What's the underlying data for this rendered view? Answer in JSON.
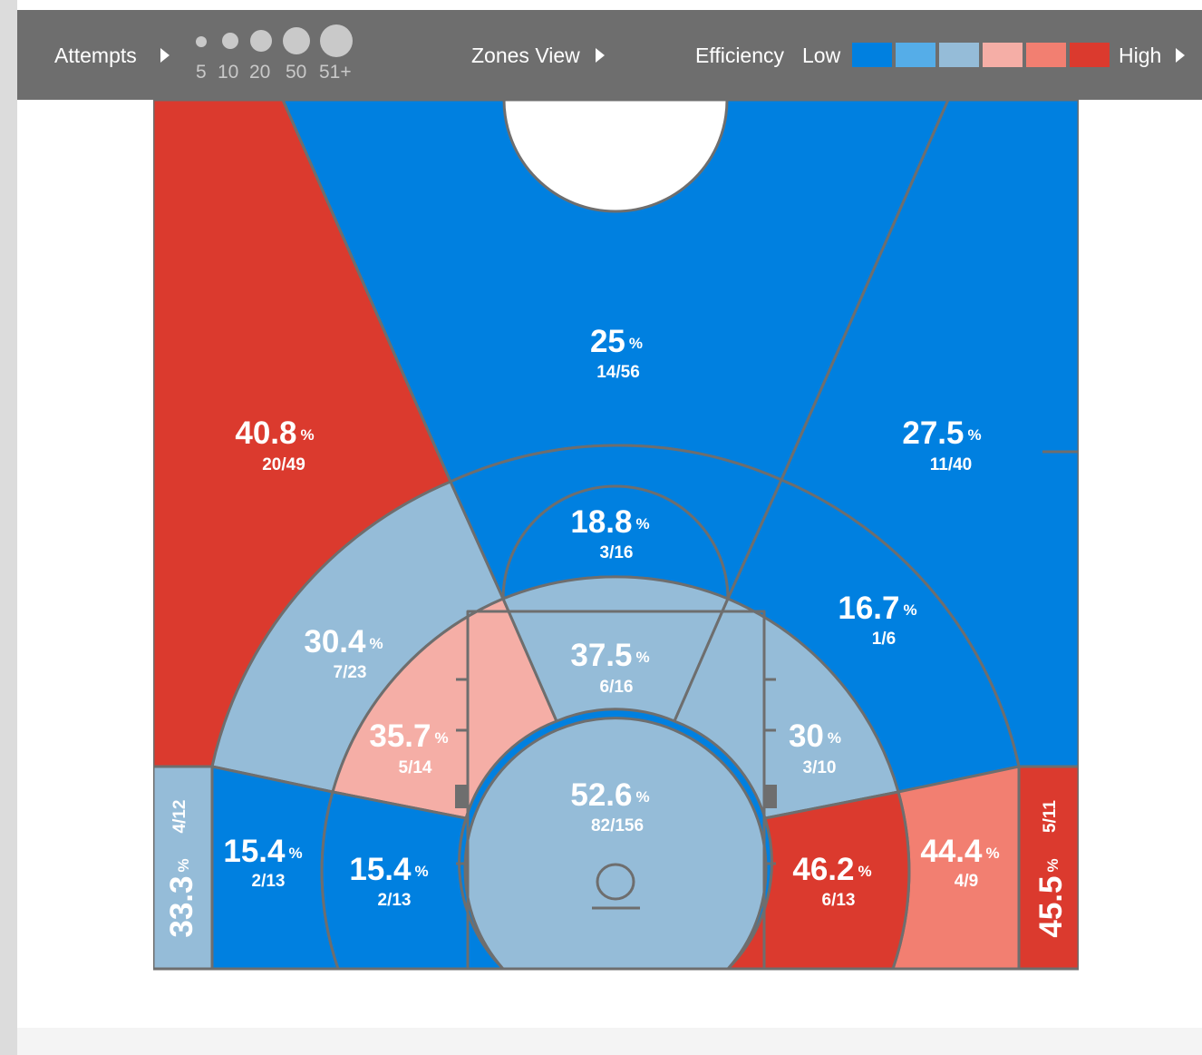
{
  "toolbar": {
    "attempts_label": "Attempts",
    "attempt_sizes": [
      "5",
      "10",
      "20",
      "50",
      "51+"
    ],
    "view_label": "Zones View",
    "efficiency_label": "Efficiency",
    "low_label": "Low",
    "high_label": "High",
    "efficiency_colors": [
      "#0080e0",
      "#55ade8",
      "#95bcd8",
      "#f5aea6",
      "#f27f71",
      "#db3a2e"
    ]
  },
  "zones": {
    "left_wing_three": {
      "pct": "40.8",
      "frac": "20/49",
      "color": "#db3a2e"
    },
    "top_three": {
      "pct": "25",
      "frac": "14/56",
      "color": "#0080e0"
    },
    "right_wing_three": {
      "pct": "27.5",
      "frac": "11/40",
      "color": "#0080e0"
    },
    "top_key_mid": {
      "pct": "18.8",
      "frac": "3/16",
      "color": "#0080e0"
    },
    "left_wing_mid": {
      "pct": "30.4",
      "frac": "7/23",
      "color": "#95bcd8"
    },
    "right_wing_mid": {
      "pct": "16.7",
      "frac": "1/6",
      "color": "#0080e0"
    },
    "center_paint_upper": {
      "pct": "37.5",
      "frac": "6/16",
      "color": "#95bcd8"
    },
    "left_elbow": {
      "pct": "35.7",
      "frac": "5/14",
      "color": "#f5aea6"
    },
    "right_elbow": {
      "pct": "30",
      "frac": "3/10",
      "color": "#95bcd8"
    },
    "restricted_area": {
      "pct": "52.6",
      "frac": "82/156",
      "color": "#95bcd8"
    },
    "left_baseline_mid": {
      "pct": "15.4",
      "frac": "2/13",
      "color": "#0080e0"
    },
    "left_short_baseline": {
      "pct": "15.4",
      "frac": "2/13",
      "color": "#0080e0"
    },
    "right_short_baseline": {
      "pct": "46.2",
      "frac": "6/13",
      "color": "#db3a2e"
    },
    "right_baseline_mid": {
      "pct": "44.4",
      "frac": "4/9",
      "color": "#f27f71"
    },
    "left_corner_three": {
      "pct": "33.3",
      "frac": "4/12",
      "color": "#95bcd8"
    },
    "right_corner_three": {
      "pct": "45.5",
      "frac": "5/11",
      "color": "#db3a2e"
    }
  },
  "percent_sign": "%"
}
